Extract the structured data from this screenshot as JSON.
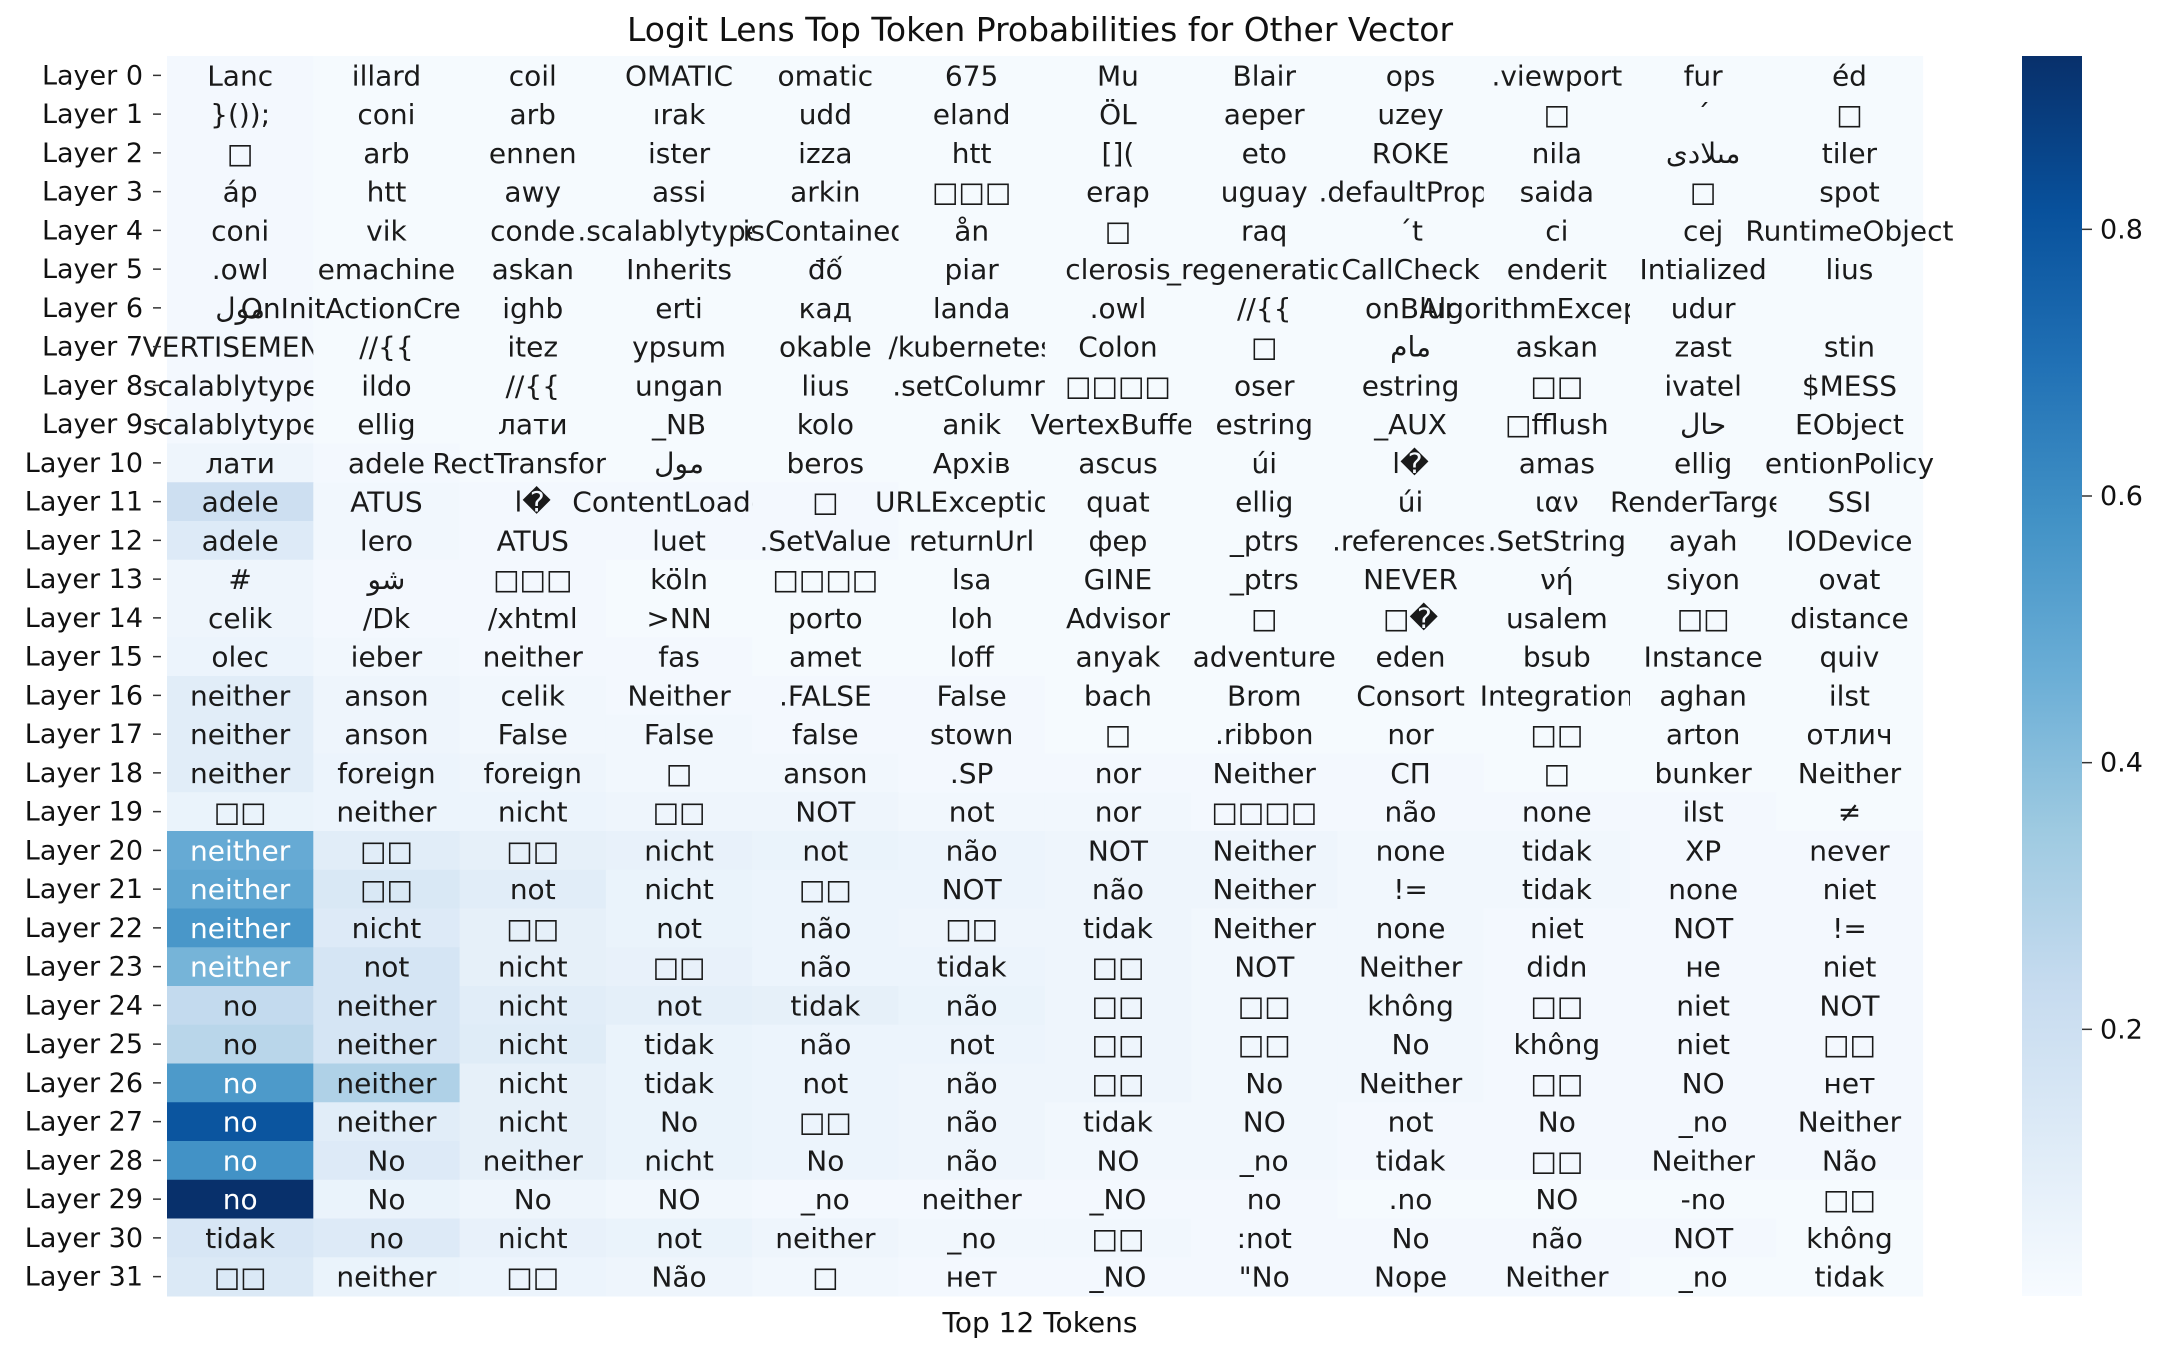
{
  "chart_data": {
    "type": "heatmap",
    "title": "Logit Lens Top Token Probabilities for Other Vector",
    "xlabel": "Top 12 Tokens",
    "ylabel": "",
    "rows": [
      "Layer 0",
      "Layer 1",
      "Layer 2",
      "Layer 3",
      "Layer 4",
      "Layer 5",
      "Layer 6",
      "Layer 7",
      "Layer 8",
      "Layer 9",
      "Layer 10",
      "Layer 11",
      "Layer 12",
      "Layer 13",
      "Layer 14",
      "Layer 15",
      "Layer 16",
      "Layer 17",
      "Layer 18",
      "Layer 19",
      "Layer 20",
      "Layer 21",
      "Layer 22",
      "Layer 23",
      "Layer 24",
      "Layer 25",
      "Layer 26",
      "Layer 27",
      "Layer 28",
      "Layer 29",
      "Layer 30",
      "Layer 31"
    ],
    "tokens": [
      [
        "Lanc",
        "illard",
        "coil",
        "OMATIC",
        "omatic",
        "675",
        "Mu",
        "Blair",
        "ops",
        ".viewport",
        "fur",
        "éd"
      ],
      [
        "}());",
        "coni",
        "arb",
        "ırak",
        "udd",
        "eland",
        "ÖL",
        "aeper",
        "uzey",
        "□",
        "´",
        "□"
      ],
      [
        "□",
        "arb",
        "ennen",
        "ister",
        "izza",
        "htt",
        "[](",
        "eto",
        "ROKE",
        "nila",
        "مىلادى",
        "tiler"
      ],
      [
        "áp",
        "htt",
        "awy",
        "assi",
        "arkin",
        "□□□",
        "erap",
        "uguay",
        ".defaultProps",
        "saida",
        "□",
        "spot"
      ],
      [
        "coni",
        "vik",
        "conde",
        ".scalablytyped",
        "isContained",
        "ån",
        "□",
        "raq",
        "´t",
        "ci",
        "cej",
        "RuntimeObject"
      ],
      [
        ".owl",
        "emachine",
        "askan",
        "Inherits",
        "đố",
        "piar",
        "clerosis",
        "_regeneration",
        "CallCheck",
        "enderit",
        "Intialized",
        "lius"
      ],
      [
        "مول",
        "OnInitActionCreators",
        "ighb",
        "erti",
        "кад",
        "landa",
        ".owl",
        "//{{",
        "onBlur",
        "AlgorithmException",
        "udur",
        ""
      ],
      [
        "VERTISEMENT",
        "//{{",
        "itez",
        "ypsum",
        "okable",
        "/kubernetes",
        "Colon",
        "□",
        "مام",
        "askan",
        "zast",
        "stin"
      ],
      [
        "scalablytyped",
        "ildo",
        "//{{",
        "ungan",
        "lius",
        ".setColumn",
        "□□□□",
        "oser",
        "estring",
        "□□",
        "ivatel",
        "$MESS"
      ],
      [
        "scalablytyped",
        "ellig",
        "лати",
        "_NB",
        "kolo",
        "anik",
        "VertexBuffer",
        "estring",
        "_AUX",
        "□fflush",
        "حال",
        "EObject"
      ],
      [
        "лати",
        "adele",
        "RectTransform",
        "مول",
        "beros",
        "Архів",
        "ascus",
        "úi",
        "l�",
        "amas",
        "ellig",
        "entionPolicy"
      ],
      [
        "adele",
        "ATUS",
        "l�",
        "ContentLoaded",
        "□",
        "URLException",
        "quat",
        "ellig",
        "úi",
        "ιαν",
        "RenderTarget",
        "SSI"
      ],
      [
        "adele",
        "lero",
        "ATUS",
        "luet",
        ".SetValue",
        "returnUrl",
        "фер",
        "_ptrs",
        ".references",
        ".SetString",
        "ayah",
        "IODevice"
      ],
      [
        "#",
        "شو",
        "□□□",
        "köln",
        "□□□□",
        "lsa",
        "GINE",
        "_ptrs",
        "NEVER",
        "νή",
        "siyon",
        "ovat"
      ],
      [
        "celik",
        "/Dk",
        "/xhtml",
        ">NN",
        "porto",
        "loh",
        "Advisor",
        "□",
        "□�",
        "usalem",
        "□□",
        "distance"
      ],
      [
        "olec",
        "ieber",
        "neither",
        "fas",
        "amet",
        "loff",
        "anyak",
        "adventure",
        "eden",
        "bsub",
        "Instance",
        "quiv"
      ],
      [
        "neither",
        "anson",
        "celik",
        "Neither",
        ".FALSE",
        "False",
        "bach",
        "Brom",
        "Consort",
        "Integration",
        "aghan",
        "ilst"
      ],
      [
        "neither",
        "anson",
        "False",
        "False",
        "false",
        "stown",
        "□",
        ".ribbon",
        "nor",
        "□□",
        "arton",
        "отлич"
      ],
      [
        "neither",
        "foreign",
        "foreign",
        "□",
        "anson",
        ".SP",
        "nor",
        "Neither",
        "СП",
        "□",
        "bunker",
        "Neither"
      ],
      [
        "□□",
        "neither",
        "nicht",
        "□□",
        "NOT",
        "not",
        "nor",
        "□□□□",
        "não",
        "none",
        "ilst",
        "≠"
      ],
      [
        "neither",
        "□□",
        "□□",
        "nicht",
        "not",
        "não",
        "NOT",
        "Neither",
        "none",
        "tidak",
        "XP",
        "never"
      ],
      [
        "neither",
        "□□",
        "not",
        "nicht",
        "□□",
        "NOT",
        "não",
        "Neither",
        "!=",
        "tidak",
        "none",
        "niet"
      ],
      [
        "neither",
        "nicht",
        "□□",
        "not",
        "não",
        "□□",
        "tidak",
        "Neither",
        "none",
        "niet",
        "NOT",
        "!="
      ],
      [
        "neither",
        "not",
        "nicht",
        "□□",
        "não",
        "tidak",
        "□□",
        "NOT",
        "Neither",
        "didn",
        "не",
        "niet"
      ],
      [
        "no",
        "neither",
        "nicht",
        "not",
        "tidak",
        "não",
        "□□",
        "□□",
        "không",
        "□□",
        "niet",
        "NOT"
      ],
      [
        "no",
        "neither",
        "nicht",
        "tidak",
        "não",
        "not",
        "□□",
        "□□",
        "No",
        "không",
        "niet",
        "□□"
      ],
      [
        "no",
        "neither",
        "nicht",
        "tidak",
        "not",
        "não",
        "□□",
        "No",
        "Neither",
        "□□",
        "NO",
        "нет"
      ],
      [
        "no",
        "neither",
        "nicht",
        "No",
        "□□",
        "não",
        "tidak",
        "NO",
        "not",
        "No",
        "_no",
        "Neither"
      ],
      [
        "no",
        "No",
        "neither",
        "nicht",
        "No",
        "não",
        "NO",
        "_no",
        "tidak",
        "□□",
        "Neither",
        "Não"
      ],
      [
        "no",
        "No",
        "No",
        "NO",
        "_no",
        "neither",
        "_NO",
        "no",
        ".no",
        "NO",
        "-no",
        "□□"
      ],
      [
        "tidak",
        "no",
        "nicht",
        "not",
        "neither",
        "_no",
        "□□",
        ":not",
        "No",
        "não",
        "NOT",
        "không"
      ],
      [
        "□□",
        "neither",
        "□□",
        "Não",
        "□",
        "нет",
        "_NO",
        "\"No",
        "Nope",
        "Neither",
        "_no",
        "tidak"
      ]
    ],
    "values": [
      [
        0.02,
        0.01,
        0.01,
        0.01,
        0.01,
        0.01,
        0.01,
        0.01,
        0.01,
        0.01,
        0.01,
        0.01
      ],
      [
        0.02,
        0.01,
        0.01,
        0.01,
        0.01,
        0.01,
        0.01,
        0.01,
        0.01,
        0.01,
        0.01,
        0.01
      ],
      [
        0.02,
        0.01,
        0.01,
        0.01,
        0.01,
        0.01,
        0.01,
        0.01,
        0.01,
        0.01,
        0.01,
        0.01
      ],
      [
        0.02,
        0.01,
        0.01,
        0.01,
        0.01,
        0.01,
        0.01,
        0.01,
        0.01,
        0.01,
        0.01,
        0.01
      ],
      [
        0.02,
        0.01,
        0.01,
        0.01,
        0.01,
        0.01,
        0.01,
        0.01,
        0.01,
        0.01,
        0.01,
        0.01
      ],
      [
        0.02,
        0.01,
        0.01,
        0.01,
        0.01,
        0.01,
        0.01,
        0.01,
        0.01,
        0.01,
        0.01,
        0.01
      ],
      [
        0.02,
        0.01,
        0.01,
        0.01,
        0.01,
        0.01,
        0.01,
        0.01,
        0.01,
        0.01,
        0.01,
        0.01
      ],
      [
        0.02,
        0.01,
        0.01,
        0.01,
        0.01,
        0.01,
        0.01,
        0.01,
        0.01,
        0.01,
        0.01,
        0.01
      ],
      [
        0.02,
        0.01,
        0.01,
        0.01,
        0.01,
        0.01,
        0.01,
        0.01,
        0.01,
        0.01,
        0.01,
        0.01
      ],
      [
        0.02,
        0.01,
        0.01,
        0.01,
        0.01,
        0.01,
        0.01,
        0.01,
        0.01,
        0.01,
        0.01,
        0.01
      ],
      [
        0.04,
        0.02,
        0.01,
        0.01,
        0.01,
        0.01,
        0.01,
        0.01,
        0.01,
        0.01,
        0.01,
        0.01
      ],
      [
        0.2,
        0.03,
        0.02,
        0.02,
        0.02,
        0.01,
        0.01,
        0.01,
        0.01,
        0.01,
        0.01,
        0.01
      ],
      [
        0.12,
        0.03,
        0.02,
        0.02,
        0.02,
        0.01,
        0.01,
        0.01,
        0.01,
        0.01,
        0.01,
        0.01
      ],
      [
        0.04,
        0.02,
        0.02,
        0.01,
        0.01,
        0.01,
        0.01,
        0.01,
        0.01,
        0.01,
        0.01,
        0.01
      ],
      [
        0.04,
        0.02,
        0.02,
        0.01,
        0.01,
        0.01,
        0.01,
        0.01,
        0.01,
        0.01,
        0.01,
        0.01
      ],
      [
        0.05,
        0.03,
        0.02,
        0.02,
        0.01,
        0.01,
        0.01,
        0.01,
        0.01,
        0.01,
        0.01,
        0.01
      ],
      [
        0.1,
        0.04,
        0.03,
        0.02,
        0.02,
        0.02,
        0.01,
        0.01,
        0.01,
        0.01,
        0.01,
        0.01
      ],
      [
        0.1,
        0.04,
        0.03,
        0.03,
        0.02,
        0.02,
        0.01,
        0.01,
        0.01,
        0.01,
        0.01,
        0.01
      ],
      [
        0.1,
        0.05,
        0.04,
        0.03,
        0.03,
        0.02,
        0.02,
        0.02,
        0.02,
        0.01,
        0.01,
        0.01
      ],
      [
        0.06,
        0.05,
        0.05,
        0.04,
        0.04,
        0.03,
        0.03,
        0.02,
        0.02,
        0.02,
        0.02,
        0.01
      ],
      [
        0.48,
        0.1,
        0.08,
        0.07,
        0.06,
        0.05,
        0.04,
        0.04,
        0.03,
        0.03,
        0.02,
        0.02
      ],
      [
        0.5,
        0.14,
        0.1,
        0.06,
        0.05,
        0.05,
        0.04,
        0.04,
        0.03,
        0.03,
        0.02,
        0.02
      ],
      [
        0.56,
        0.12,
        0.08,
        0.06,
        0.05,
        0.04,
        0.04,
        0.03,
        0.03,
        0.02,
        0.02,
        0.02
      ],
      [
        0.44,
        0.16,
        0.08,
        0.07,
        0.05,
        0.05,
        0.04,
        0.03,
        0.03,
        0.02,
        0.02,
        0.02
      ],
      [
        0.24,
        0.16,
        0.1,
        0.09,
        0.08,
        0.06,
        0.04,
        0.03,
        0.03,
        0.02,
        0.02,
        0.02
      ],
      [
        0.27,
        0.16,
        0.11,
        0.06,
        0.05,
        0.05,
        0.04,
        0.03,
        0.03,
        0.02,
        0.02,
        0.02
      ],
      [
        0.55,
        0.3,
        0.08,
        0.06,
        0.05,
        0.04,
        0.04,
        0.03,
        0.03,
        0.02,
        0.02,
        0.02
      ],
      [
        0.8,
        0.1,
        0.08,
        0.06,
        0.05,
        0.04,
        0.03,
        0.03,
        0.02,
        0.02,
        0.02,
        0.02
      ],
      [
        0.58,
        0.12,
        0.08,
        0.06,
        0.05,
        0.04,
        0.03,
        0.03,
        0.02,
        0.02,
        0.02,
        0.02
      ],
      [
        0.93,
        0.06,
        0.04,
        0.03,
        0.02,
        0.02,
        0.02,
        0.02,
        0.01,
        0.01,
        0.01,
        0.01
      ],
      [
        0.15,
        0.12,
        0.07,
        0.06,
        0.04,
        0.03,
        0.03,
        0.02,
        0.02,
        0.02,
        0.02,
        0.01
      ],
      [
        0.13,
        0.06,
        0.05,
        0.04,
        0.03,
        0.02,
        0.02,
        0.02,
        0.02,
        0.02,
        0.01,
        0.01
      ]
    ],
    "colorbar": {
      "ticks": [
        0.2,
        0.4,
        0.6,
        0.8
      ],
      "range": [
        0.0,
        0.93
      ],
      "colormap": "Blues"
    }
  }
}
